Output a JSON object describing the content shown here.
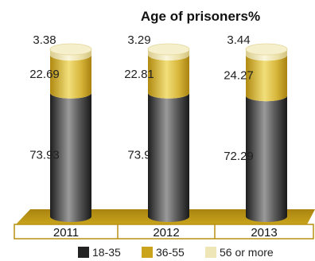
{
  "chart_data": {
    "type": "bar",
    "stacked": true,
    "title": "Age of prisoners%",
    "categories": [
      "2011",
      "2012",
      "2013"
    ],
    "series": [
      {
        "name": "18-35",
        "values": [
          73.93,
          73.9,
          72.29
        ],
        "color": "#3a3a3a"
      },
      {
        "name": "36-55",
        "values": [
          22.69,
          22.81,
          24.27
        ],
        "color": "#d8b830"
      },
      {
        "name": "56 or more",
        "values": [
          3.38,
          3.29,
          3.44
        ],
        "color": "#f0e6b4"
      }
    ],
    "ylim": [
      0,
      100
    ],
    "legend_position": "bottom",
    "grid": false,
    "base_color": "#b89010"
  }
}
